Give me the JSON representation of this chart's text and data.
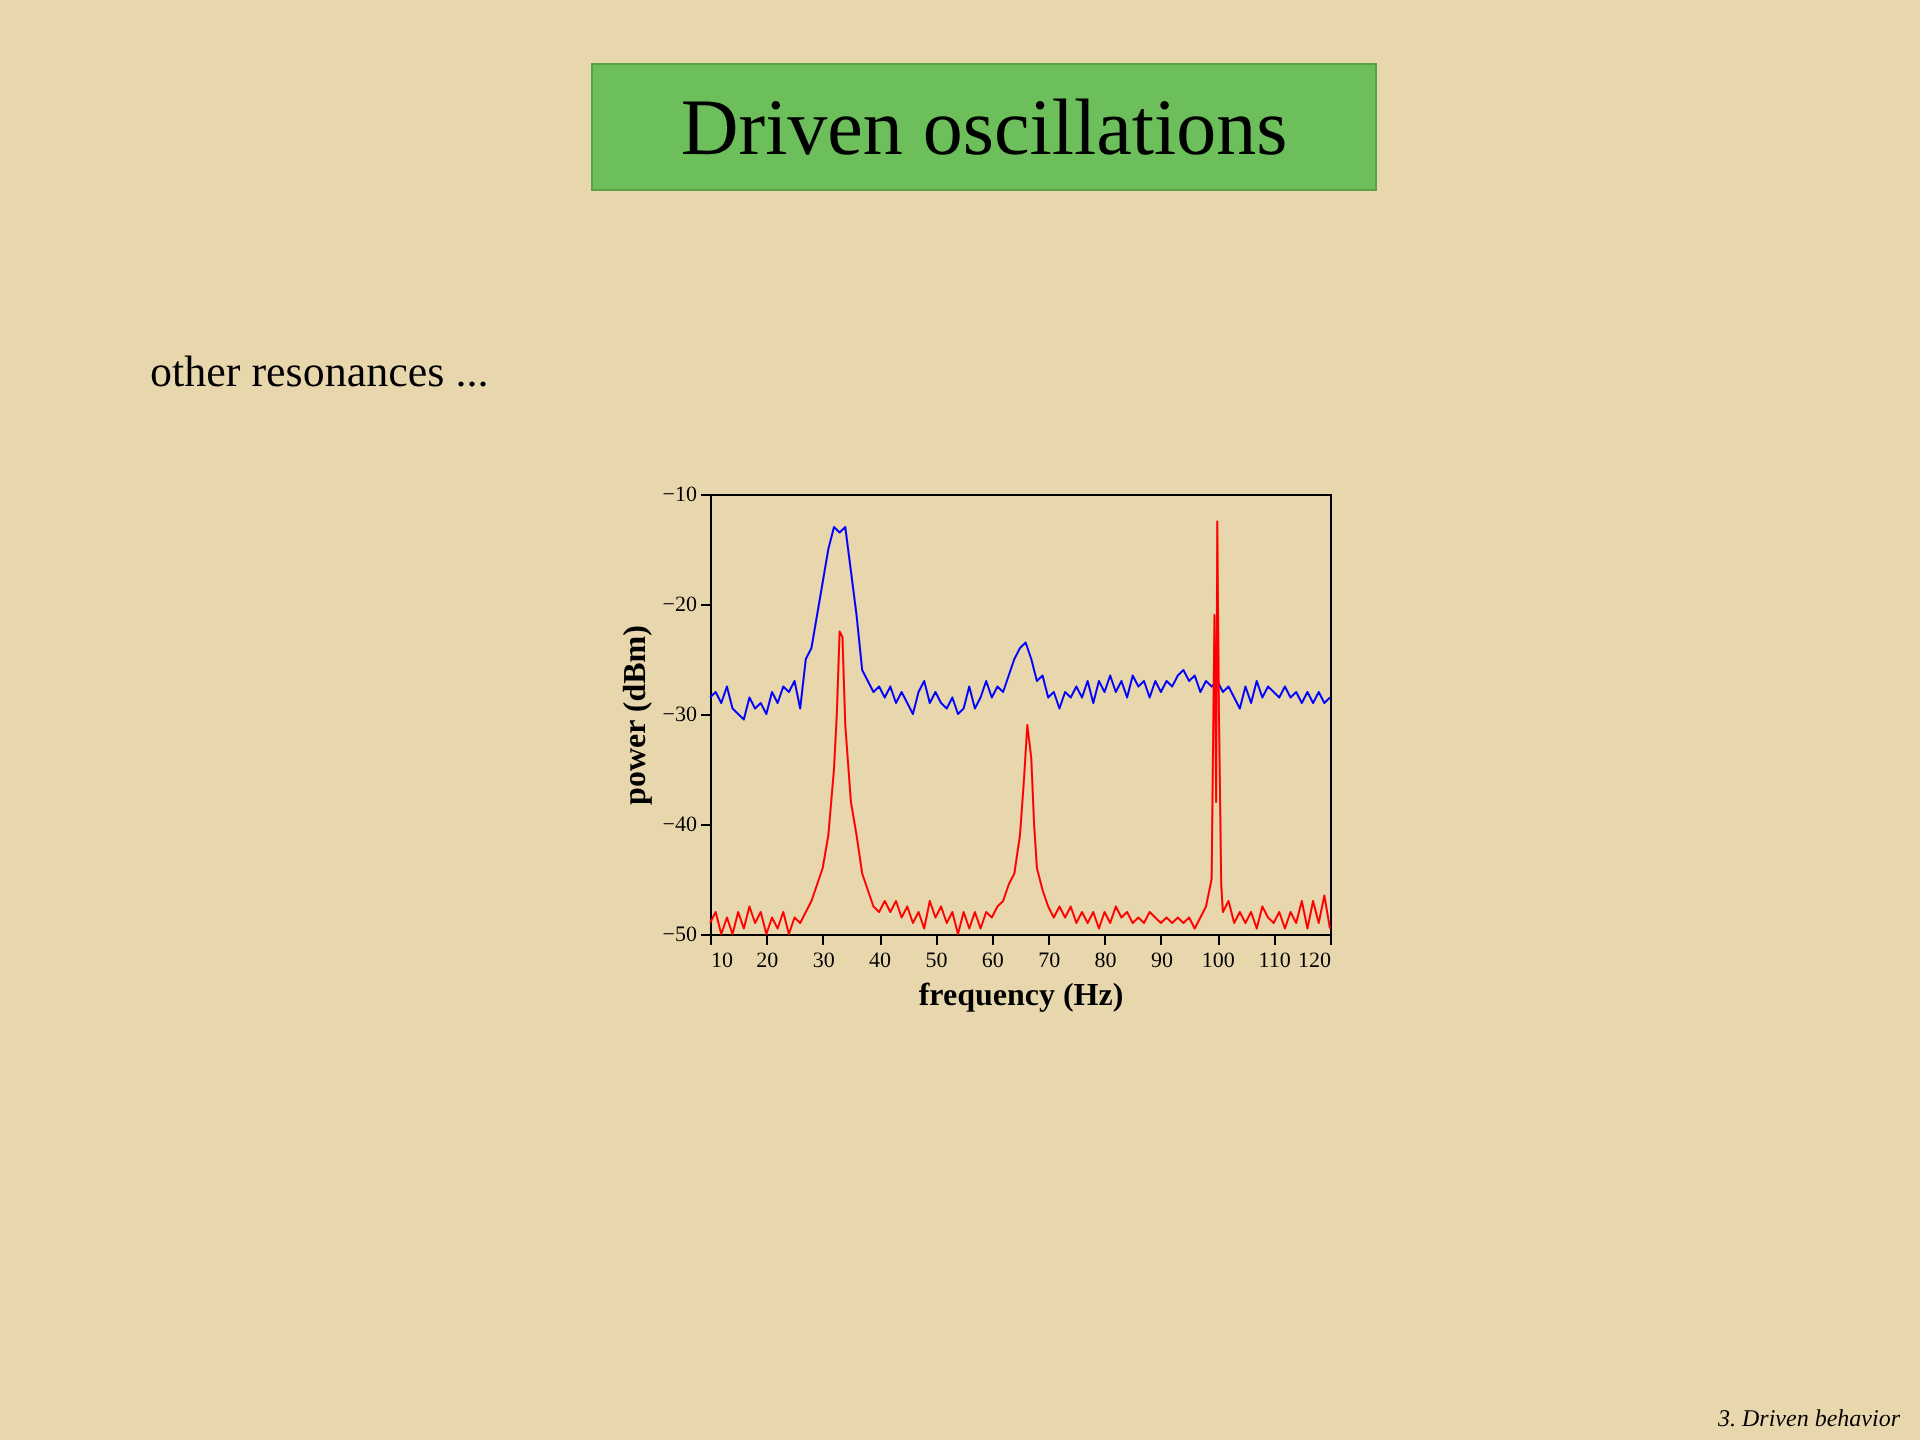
{
  "chart_data": {
    "type": "line",
    "title": "Driven oscillations",
    "subtitle": "other resonances ...",
    "annotations": [
      "3. Driven behavior"
    ],
    "xlabel": "frequency (Hz)",
    "ylabel": "power (dBm)",
    "xlim": [
      10,
      120
    ],
    "xticks": [
      10,
      20,
      30,
      40,
      50,
      60,
      70,
      80,
      90,
      100,
      110,
      120
    ],
    "ylim": [
      -50,
      -10
    ],
    "yticks": [
      -50,
      -40,
      -30,
      -20,
      -10
    ],
    "grid": false,
    "legend": false,
    "series": [
      {
        "color": "#0000ff",
        "x": [
          10,
          11,
          12,
          13,
          14,
          15,
          16,
          17,
          18,
          19,
          20,
          21,
          22,
          23,
          24,
          25,
          26,
          27,
          28,
          29,
          30,
          31,
          32,
          33,
          34,
          35,
          36,
          37,
          38,
          39,
          40,
          41,
          42,
          43,
          44,
          45,
          46,
          47,
          48,
          49,
          50,
          51,
          52,
          53,
          54,
          55,
          56,
          57,
          58,
          59,
          60,
          61,
          62,
          63,
          64,
          65,
          66,
          67,
          68,
          69,
          70,
          71,
          72,
          73,
          74,
          75,
          76,
          77,
          78,
          79,
          80,
          81,
          82,
          83,
          84,
          85,
          86,
          87,
          88,
          89,
          90,
          91,
          92,
          93,
          94,
          95,
          96,
          97,
          98,
          99,
          100,
          101,
          102,
          103,
          104,
          105,
          106,
          107,
          108,
          109,
          110,
          111,
          112,
          113,
          114,
          115,
          116,
          117,
          118,
          119,
          120
        ],
        "values": [
          -28.5,
          -28,
          -29,
          -27.5,
          -29.5,
          -30,
          -30.5,
          -28.5,
          -29.5,
          -29,
          -30,
          -28,
          -29,
          -27.5,
          -28,
          -27,
          -29.5,
          -25,
          -24,
          -21,
          -18,
          -15,
          -13,
          -13.5,
          -13,
          -17,
          -21,
          -26,
          -27,
          -28,
          -27.5,
          -28.5,
          -27.5,
          -29,
          -28,
          -29,
          -30,
          -28,
          -27,
          -29,
          -28,
          -29,
          -29.5,
          -28.5,
          -30,
          -29.5,
          -27.5,
          -29.5,
          -28.5,
          -27,
          -28.5,
          -27.5,
          -28,
          -26.5,
          -25,
          -24,
          -23.5,
          -25,
          -27,
          -26.5,
          -28.5,
          -28,
          -29.5,
          -28,
          -28.5,
          -27.5,
          -28.5,
          -27,
          -29,
          -27,
          -28,
          -26.5,
          -28,
          -27,
          -28.5,
          -26.5,
          -27.5,
          -27,
          -28.5,
          -27,
          -28,
          -27,
          -27.5,
          -26.5,
          -26,
          -27,
          -26.5,
          -28,
          -27,
          -27.5,
          -27,
          -28,
          -27.5,
          -28.5,
          -29.5,
          -27.5,
          -29,
          -27,
          -28.5,
          -27.5,
          -28,
          -28.5,
          -27.5,
          -28.5,
          -28,
          -29,
          -28,
          -29,
          -28,
          -29,
          -28.5
        ]
      },
      {
        "color": "#ff0000",
        "x": [
          10,
          11,
          12,
          13,
          14,
          15,
          16,
          17,
          18,
          19,
          20,
          21,
          22,
          23,
          24,
          25,
          26,
          27,
          28,
          29,
          30,
          31,
          32,
          32.5,
          33,
          33.5,
          34,
          35,
          36,
          37,
          38,
          39,
          40,
          41,
          42,
          43,
          44,
          45,
          46,
          47,
          48,
          49,
          50,
          51,
          52,
          53,
          54,
          55,
          56,
          57,
          58,
          59,
          60,
          61,
          62,
          63,
          64,
          65,
          65.7,
          66.3,
          67,
          67.5,
          68,
          69,
          70,
          71,
          72,
          73,
          74,
          75,
          76,
          77,
          78,
          79,
          80,
          81,
          82,
          83,
          84,
          85,
          86,
          87,
          88,
          89,
          90,
          91,
          92,
          93,
          94,
          95,
          96,
          97,
          98,
          99,
          99.5,
          99.8,
          100,
          100.3,
          100.7,
          101,
          102,
          103,
          104,
          105,
          106,
          107,
          108,
          109,
          110,
          111,
          112,
          113,
          114,
          115,
          116,
          117,
          118,
          119,
          120
        ],
        "values": [
          -49,
          -48,
          -50,
          -48.5,
          -50,
          -48,
          -49.5,
          -47.5,
          -49,
          -48,
          -50,
          -48.5,
          -49.5,
          -48,
          -50,
          -48.5,
          -49,
          -48,
          -47,
          -45.5,
          -44,
          -41,
          -35,
          -30,
          -22.5,
          -23,
          -31,
          -38,
          -41,
          -44.5,
          -46,
          -47.5,
          -48,
          -47,
          -48,
          -47,
          -48.5,
          -47.5,
          -49,
          -48,
          -49.5,
          -47,
          -48.5,
          -47.5,
          -49,
          -48,
          -50,
          -48,
          -49.5,
          -48,
          -49.5,
          -48,
          -48.5,
          -47.5,
          -47,
          -45.5,
          -44.5,
          -41,
          -36,
          -31,
          -34,
          -40,
          -44,
          -46,
          -47.5,
          -48.5,
          -47.5,
          -48.5,
          -47.5,
          -49,
          -48,
          -49,
          -48,
          -49.5,
          -48,
          -49,
          -47.5,
          -48.5,
          -48,
          -49,
          -48.5,
          -49,
          -48,
          -48.5,
          -49,
          -48.5,
          -49,
          -48.5,
          -49,
          -48.5,
          -49.5,
          -48.5,
          -47.5,
          -45,
          -21,
          -38,
          -12.5,
          -30,
          -45.5,
          -48,
          -47,
          -49,
          -48,
          -49,
          -48,
          -49.5,
          -47.5,
          -48.5,
          -49,
          -48,
          -49.5,
          -48,
          -49,
          -47,
          -49.5,
          -47,
          -49,
          -46.5,
          -49.5
        ]
      }
    ]
  }
}
